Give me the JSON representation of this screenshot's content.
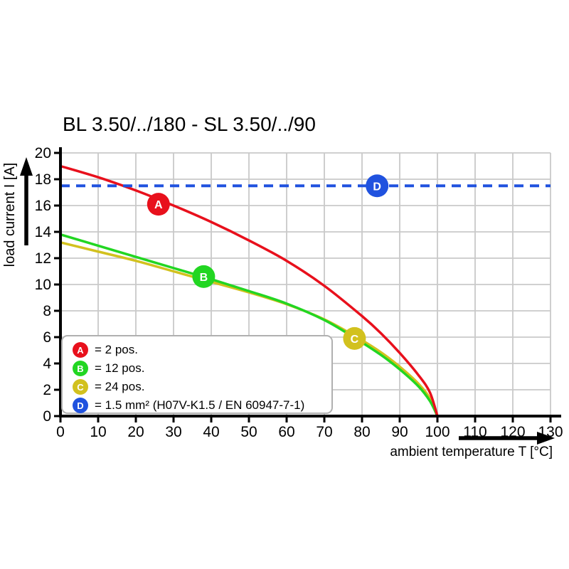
{
  "title": "BL 3.50/../180 - SL 3.50/../90",
  "chart_data": {
    "type": "line",
    "title": "BL 3.50/../180 - SL 3.50/../90",
    "xlabel": "ambient temperature T [°C]",
    "ylabel": "load current I [A]",
    "xlim": [
      0,
      130
    ],
    "ylim": [
      0,
      20
    ],
    "xticks": [
      0,
      10,
      20,
      30,
      40,
      50,
      60,
      70,
      80,
      90,
      100,
      110,
      120,
      130
    ],
    "yticks": [
      0,
      2,
      4,
      6,
      8,
      10,
      12,
      14,
      16,
      18,
      20
    ],
    "grid": true,
    "grid_color": "#c9c9c9",
    "axis_color": "#000000",
    "series": [
      {
        "id": "C",
        "name": "24 pos.",
        "color": "#d2c11e",
        "style": "solid",
        "points": [
          [
            0,
            13.2
          ],
          [
            10,
            12.5
          ],
          [
            20,
            11.8
          ],
          [
            30,
            11.0
          ],
          [
            40,
            10.2
          ],
          [
            50,
            9.4
          ],
          [
            60,
            8.5
          ],
          [
            70,
            7.35
          ],
          [
            78,
            6.1
          ],
          [
            85,
            4.85
          ],
          [
            90,
            3.75
          ],
          [
            95,
            2.45
          ],
          [
            98,
            1.35
          ],
          [
            100,
            0
          ]
        ]
      },
      {
        "id": "B",
        "name": "12 pos.",
        "color": "#22d622",
        "style": "solid",
        "points": [
          [
            0,
            13.8
          ],
          [
            10,
            12.95
          ],
          [
            20,
            12.1
          ],
          [
            30,
            11.25
          ],
          [
            40,
            10.4
          ],
          [
            50,
            9.5
          ],
          [
            60,
            8.55
          ],
          [
            70,
            7.3
          ],
          [
            78,
            5.95
          ],
          [
            85,
            4.65
          ],
          [
            90,
            3.55
          ],
          [
            95,
            2.25
          ],
          [
            98,
            1.15
          ],
          [
            100,
            0
          ]
        ]
      },
      {
        "id": "A",
        "name": "2 pos.",
        "color": "#e8101c",
        "style": "solid",
        "points": [
          [
            0,
            19
          ],
          [
            10,
            18.15
          ],
          [
            20,
            17.15
          ],
          [
            30,
            16.0
          ],
          [
            40,
            14.75
          ],
          [
            50,
            13.35
          ],
          [
            60,
            11.8
          ],
          [
            70,
            9.9
          ],
          [
            80,
            7.6
          ],
          [
            85,
            6.3
          ],
          [
            90,
            4.8
          ],
          [
            95,
            3.1
          ],
          [
            98,
            1.8
          ],
          [
            100,
            0
          ]
        ]
      },
      {
        "id": "D",
        "name": "1.5 mm² (H07V-K1.5 / EN 60947-7-1)",
        "color": "#2052df",
        "style": "dashed",
        "points": [
          [
            0,
            17.5
          ],
          [
            130,
            17.5
          ]
        ]
      }
    ],
    "markers": [
      {
        "label": "A",
        "x": 26,
        "y": 16.1,
        "color": "#e8101c"
      },
      {
        "label": "B",
        "x": 38,
        "y": 10.6,
        "color": "#22d622"
      },
      {
        "label": "C",
        "x": 78,
        "y": 5.9,
        "color": "#d2c11e"
      },
      {
        "label": "D",
        "x": 84,
        "y": 17.5,
        "color": "#2052df"
      }
    ],
    "legend": [
      {
        "label": "A",
        "text": "= 2 pos.",
        "color": "#e8101c"
      },
      {
        "label": "B",
        "text": "= 12 pos.",
        "color": "#22d622"
      },
      {
        "label": "C",
        "text": "= 24 pos.",
        "color": "#d2c11e"
      },
      {
        "label": "D",
        "text": "= 1.5 mm² (H07V-K1.5 / EN 60947-7-1)",
        "color": "#2052df"
      }
    ],
    "legend_position": "bottom-left"
  }
}
